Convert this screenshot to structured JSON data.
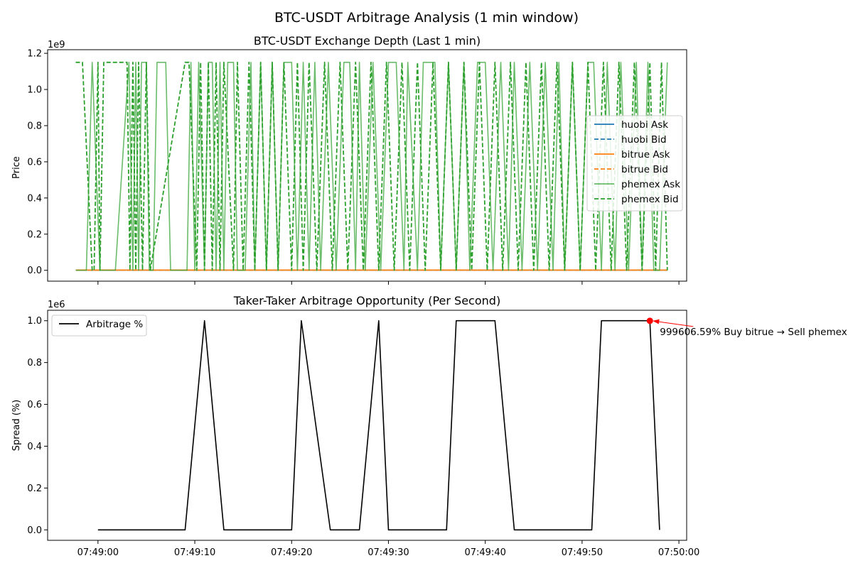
{
  "figure": {
    "suptitle": "BTC-USDT Arbitrage Analysis (1 min window)"
  },
  "chart_data": [
    {
      "type": "line",
      "title": "BTC-USDT Exchange Depth (Last 1 min)",
      "xlabel": "",
      "ylabel": "Price",
      "scale_label": "1e9",
      "yticks": [
        0,
        0.2,
        0.4,
        0.6,
        0.8,
        1.0,
        1.2
      ],
      "ytick_labels": [
        "0.0",
        "0.2",
        "0.4",
        "0.6",
        "0.8",
        "1.0",
        "1.2"
      ],
      "ylim": [
        -0.06,
        1.22
      ],
      "xlim_seconds": [
        -5.2,
        60.8
      ],
      "x_unit": "seconds after 07:49:00",
      "xticks": [
        0,
        10,
        20,
        30,
        40,
        50,
        60
      ],
      "grid": false,
      "legend_position": "center-right",
      "series": [
        {
          "name": "huobi Ask",
          "color": "#1f77b4",
          "style": "solid",
          "x": [
            -2.3,
            58.8
          ],
          "y": [
            0.0012,
            0.0012
          ]
        },
        {
          "name": "huobi Bid",
          "color": "#1f77b4",
          "style": "dashed",
          "x": [
            -2.3,
            58.8
          ],
          "y": [
            0.0011,
            0.0011
          ]
        },
        {
          "name": "bitrue Ask",
          "color": "#ff7f0e",
          "style": "solid",
          "x": [
            -2.3,
            58.8
          ],
          "y": [
            0.0012,
            0.0012
          ]
        },
        {
          "name": "bitrue Bid",
          "color": "#ff7f0e",
          "style": "dashed",
          "x": [
            -2.3,
            58.8
          ],
          "y": [
            0.0011,
            0.0011
          ]
        },
        {
          "name": "phemex Ask",
          "color": "#2ca02c",
          "style": "solid",
          "opacity": 0.7,
          "x": [
            -2.3,
            -1.2,
            -0.6,
            0.2,
            0.5,
            1.8,
            3.2,
            3.6,
            3.9,
            4.2,
            4.5,
            5.0,
            5.3,
            5.7,
            6.1,
            7.0,
            7.5,
            9.2,
            9.6,
            10.0,
            10.4,
            11.0,
            11.4,
            11.8,
            12.2,
            12.6,
            13.0,
            13.4,
            14.0,
            14.4,
            15.2,
            15.8,
            16.2,
            16.8,
            17.4,
            18.0,
            18.6,
            19.2,
            20.0,
            20.6,
            21.2,
            21.8,
            22.4,
            23.0,
            23.8,
            24.6,
            25.4,
            26.0,
            26.6,
            27.0,
            27.6,
            28.4,
            29.2,
            30.0,
            30.8,
            31.6,
            32.0,
            33.0,
            33.6,
            34.8,
            35.4,
            36.2,
            37.0,
            37.8,
            38.4,
            39.2,
            40.0,
            40.8,
            41.6,
            42.4,
            43.0,
            43.8,
            44.6,
            45.4,
            46.2,
            47.0,
            47.6,
            48.2,
            49.0,
            49.8,
            50.6,
            51.2,
            52.0,
            52.6,
            53.4,
            54.0,
            54.8,
            55.6,
            56.2,
            56.8,
            57.4,
            58.0,
            58.8
          ],
          "y": [
            0.0,
            0.0,
            1.15,
            0.0,
            0.0,
            0.0,
            1.15,
            0.0,
            1.15,
            0.0,
            1.15,
            1.15,
            0.0,
            0.0,
            1.15,
            1.15,
            0.0,
            0.0,
            1.15,
            0.0,
            1.15,
            0.0,
            1.15,
            1.15,
            0.0,
            1.15,
            0.0,
            1.15,
            1.15,
            0.0,
            0.0,
            1.15,
            0.0,
            1.15,
            0.0,
            1.15,
            0.0,
            1.15,
            1.15,
            0.0,
            1.15,
            0.0,
            1.15,
            0.0,
            1.15,
            0.0,
            1.15,
            1.15,
            0.0,
            1.15,
            0.0,
            1.15,
            0.0,
            1.15,
            1.15,
            0.0,
            1.15,
            0.0,
            1.15,
            1.15,
            0.0,
            1.15,
            0.0,
            1.15,
            0.0,
            1.15,
            1.15,
            0.0,
            1.15,
            0.0,
            1.15,
            0.0,
            1.15,
            0.0,
            1.15,
            0.0,
            1.15,
            0.0,
            1.15,
            0.0,
            1.15,
            1.15,
            0.0,
            1.15,
            0.0,
            1.15,
            0.0,
            1.15,
            0.0,
            1.15,
            0.0,
            0.0,
            1.15
          ]
        },
        {
          "name": "phemex Bid",
          "color": "#2ca02c",
          "style": "dashed",
          "x": [
            -2.3,
            -1.6,
            -0.6,
            -0.4,
            0.0,
            0.2,
            0.6,
            1.0,
            3.0,
            3.3,
            3.6,
            3.9,
            4.2,
            4.6,
            5.0,
            5.4,
            9.0,
            9.4,
            10.2,
            10.6,
            11.0,
            11.4,
            11.8,
            12.2,
            12.6,
            13.0,
            14.0,
            14.4,
            15.0,
            15.6,
            16.2,
            16.8,
            17.4,
            18.0,
            18.6,
            19.2,
            20.0,
            20.6,
            21.2,
            21.8,
            22.6,
            23.4,
            24.2,
            25.0,
            25.8,
            26.6,
            27.4,
            28.2,
            29.0,
            29.8,
            30.6,
            31.4,
            32.2,
            33.0,
            33.8,
            34.6,
            35.4,
            36.2,
            37.0,
            37.8,
            38.6,
            39.4,
            40.2,
            41.0,
            41.8,
            42.6,
            43.4,
            44.2,
            45.0,
            45.8,
            46.6,
            47.4,
            48.2,
            49.0,
            49.8,
            50.6,
            51.4,
            52.2,
            53.0,
            53.8,
            54.6,
            55.4,
            56.2,
            57.0,
            57.6,
            58.2,
            58.8
          ],
          "y": [
            1.15,
            1.15,
            0.0,
            0.0,
            1.15,
            0.0,
            1.15,
            1.15,
            1.15,
            0.0,
            1.15,
            0.0,
            1.15,
            0.0,
            1.15,
            0.0,
            1.15,
            1.15,
            0.0,
            1.15,
            0.0,
            1.15,
            0.0,
            1.15,
            0.0,
            1.15,
            0.0,
            1.15,
            0.0,
            1.15,
            0.0,
            1.15,
            0.0,
            1.15,
            0.0,
            1.15,
            0.0,
            1.15,
            0.0,
            1.15,
            0.0,
            1.15,
            0.0,
            1.15,
            0.0,
            1.15,
            0.0,
            1.15,
            0.0,
            1.15,
            0.0,
            1.15,
            0.0,
            1.15,
            0.0,
            1.15,
            0.0,
            1.15,
            0.0,
            1.15,
            0.0,
            1.15,
            0.0,
            1.15,
            0.0,
            1.15,
            0.0,
            1.15,
            0.0,
            1.15,
            0.0,
            1.15,
            0.0,
            1.15,
            0.0,
            1.15,
            0.0,
            1.15,
            0.0,
            1.15,
            0.0,
            1.15,
            0.0,
            1.15,
            0.0,
            1.15,
            0.0
          ]
        }
      ]
    },
    {
      "type": "line",
      "title": "Taker-Taker Arbitrage Opportunity (Per Second)",
      "xlabel": "",
      "ylabel": "Spread (%)",
      "scale_label": "1e6",
      "yticks": [
        0,
        0.2,
        0.4,
        0.6,
        0.8,
        1.0
      ],
      "ytick_labels": [
        "0.0",
        "0.2",
        "0.4",
        "0.6",
        "0.8",
        "1.0"
      ],
      "ylim": [
        -0.05,
        1.05
      ],
      "xlim_seconds": [
        -5.2,
        60.8
      ],
      "x_unit": "seconds after 07:49:00",
      "xticks": [
        0,
        10,
        20,
        30,
        40,
        50,
        60
      ],
      "xtick_labels": [
        "07:49:00",
        "07:49:10",
        "07:49:20",
        "07:49:30",
        "07:49:40",
        "07:49:50",
        "07:50:00"
      ],
      "grid": false,
      "legend_position": "upper-left",
      "series": [
        {
          "name": "Arbitrage %",
          "color": "#000000",
          "style": "solid",
          "x": [
            0,
            8,
            9,
            11,
            13,
            19,
            20,
            21,
            24,
            26,
            27,
            29,
            30,
            35,
            36,
            37,
            40,
            41,
            43,
            50,
            51,
            52,
            57,
            58
          ],
          "y": [
            0,
            0,
            0,
            1.0,
            0,
            0,
            0,
            1.0,
            0,
            0,
            0,
            1.0,
            0,
            0,
            0,
            1.0,
            1.0,
            1.0,
            0,
            0,
            0,
            1.0,
            1.0,
            0
          ]
        }
      ],
      "highlight_point": {
        "x": 57,
        "y": 0.9996
      },
      "annotation": {
        "text": "999606.59% Buy bitrue → Sell phemex",
        "color": "#ff0000"
      }
    }
  ]
}
